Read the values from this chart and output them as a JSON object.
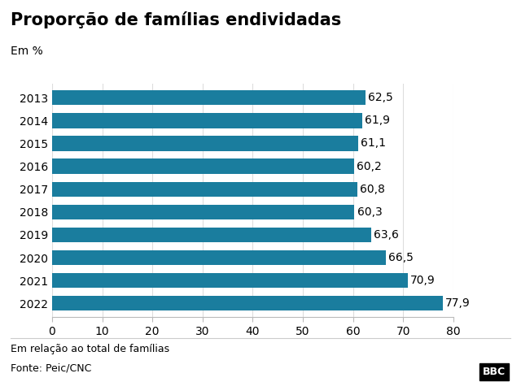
{
  "title": "Proporção de famílias endividadas",
  "subtitle": "Em %",
  "years": [
    "2013",
    "2014",
    "2015",
    "2016",
    "2017",
    "2018",
    "2019",
    "2020",
    "2021",
    "2022"
  ],
  "values": [
    62.5,
    61.9,
    61.1,
    60.2,
    60.8,
    60.3,
    63.6,
    66.5,
    70.9,
    77.9
  ],
  "bar_color": "#1a7d9e",
  "xlim": [
    0,
    80
  ],
  "xticks": [
    0,
    10,
    20,
    30,
    40,
    50,
    60,
    70,
    80
  ],
  "footnote1": "Em relação ao total de famílias",
  "footnote2": "Fonte: Peic/CNC",
  "bbc_logo": "BBC",
  "background_color": "#ffffff",
  "label_fontsize": 10,
  "title_fontsize": 15,
  "subtitle_fontsize": 10,
  "footnote_fontsize": 9,
  "tick_fontsize": 10,
  "bar_label_fontsize": 10
}
